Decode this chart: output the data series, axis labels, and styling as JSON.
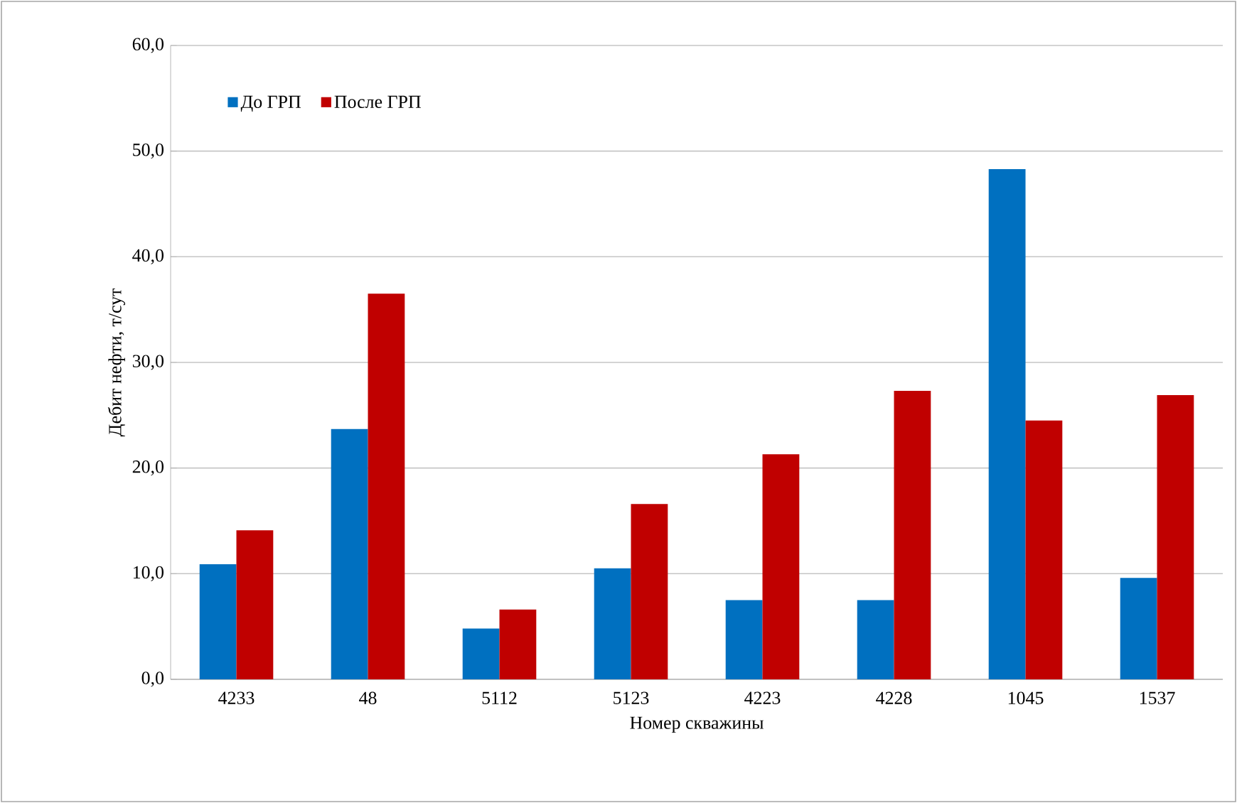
{
  "chart_data": {
    "type": "bar",
    "xlabel": "Номер скважины",
    "ylabel": "Дебит нефти, т/сут",
    "categories": [
      "4233",
      "48",
      "5112",
      "5123",
      "4223",
      "4228",
      "1045",
      "1537"
    ],
    "series": [
      {
        "name": "До ГРП",
        "color": "#0070c0",
        "values": [
          10.9,
          23.7,
          4.8,
          10.5,
          7.5,
          7.5,
          48.3,
          9.6
        ]
      },
      {
        "name": "После ГРП",
        "color": "#c00000",
        "values": [
          14.1,
          36.5,
          6.6,
          16.6,
          21.3,
          27.3,
          24.5,
          26.9
        ]
      }
    ],
    "ylim": [
      0,
      60
    ],
    "yticks": [
      {
        "value": 0,
        "label": "0,0"
      },
      {
        "value": 10,
        "label": "10,0"
      },
      {
        "value": 20,
        "label": "20,0"
      },
      {
        "value": 30,
        "label": "30,0"
      },
      {
        "value": 40,
        "label": "40,0"
      },
      {
        "value": 50,
        "label": "50,0"
      },
      {
        "value": 60,
        "label": "60,0"
      }
    ],
    "grid": "y",
    "legend": "top left"
  }
}
